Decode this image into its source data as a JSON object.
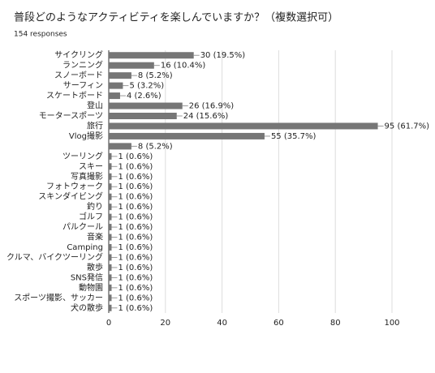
{
  "chart_data": {
    "type": "bar",
    "orientation": "horizontal",
    "title": "普段どのようなアクティビティを楽しんでいますか？（複数選択可）",
    "subtitle": "154 responses",
    "categories": [
      "サイクリング",
      "ランニング",
      "スノーボード",
      "サーフィン",
      "スケートボード",
      "登山",
      "モータースポーツ",
      "旅行",
      "Vlog撮影",
      null,
      "ツーリング",
      "スキー",
      "写真撮影",
      "フォトウォーク",
      "スキンダイビング",
      "釣り",
      "ゴルフ",
      "パルクール",
      "音楽",
      "Camping",
      "クルマ、バイクツーリング",
      "散歩",
      "SNS発信",
      "動物園",
      "スポーツ撮影、サッカー",
      "犬の散歩"
    ],
    "values": [
      30,
      16,
      8,
      5,
      4,
      26,
      24,
      95,
      55,
      8,
      1,
      1,
      1,
      1,
      1,
      1,
      1,
      1,
      1,
      1,
      1,
      1,
      1,
      1,
      1,
      1
    ],
    "value_labels": [
      "30 (19.5%)",
      "16 (10.4%)",
      "8 (5.2%)",
      "5 (3.2%)",
      "4 (2.6%)",
      "26 (16.9%)",
      "24 (15.6%)",
      "95 (61.7%)",
      "55 (35.7%)",
      "8 (5.2%)",
      "1 (0.6%)",
      "1 (0.6%)",
      "1 (0.6%)",
      "1 (0.6%)",
      "1 (0.6%)",
      "1 (0.6%)",
      "1 (0.6%)",
      "1 (0.6%)",
      "1 (0.6%)",
      "1 (0.6%)",
      "1 (0.6%)",
      "1 (0.6%)",
      "1 (0.6%)",
      "1 (0.6%)",
      "1 (0.6%)",
      "1 (0.6%)"
    ],
    "color": "#767676",
    "xlim": [
      0,
      100
    ],
    "xticks": [
      0,
      20,
      40,
      60,
      80,
      100
    ],
    "grid": true
  }
}
